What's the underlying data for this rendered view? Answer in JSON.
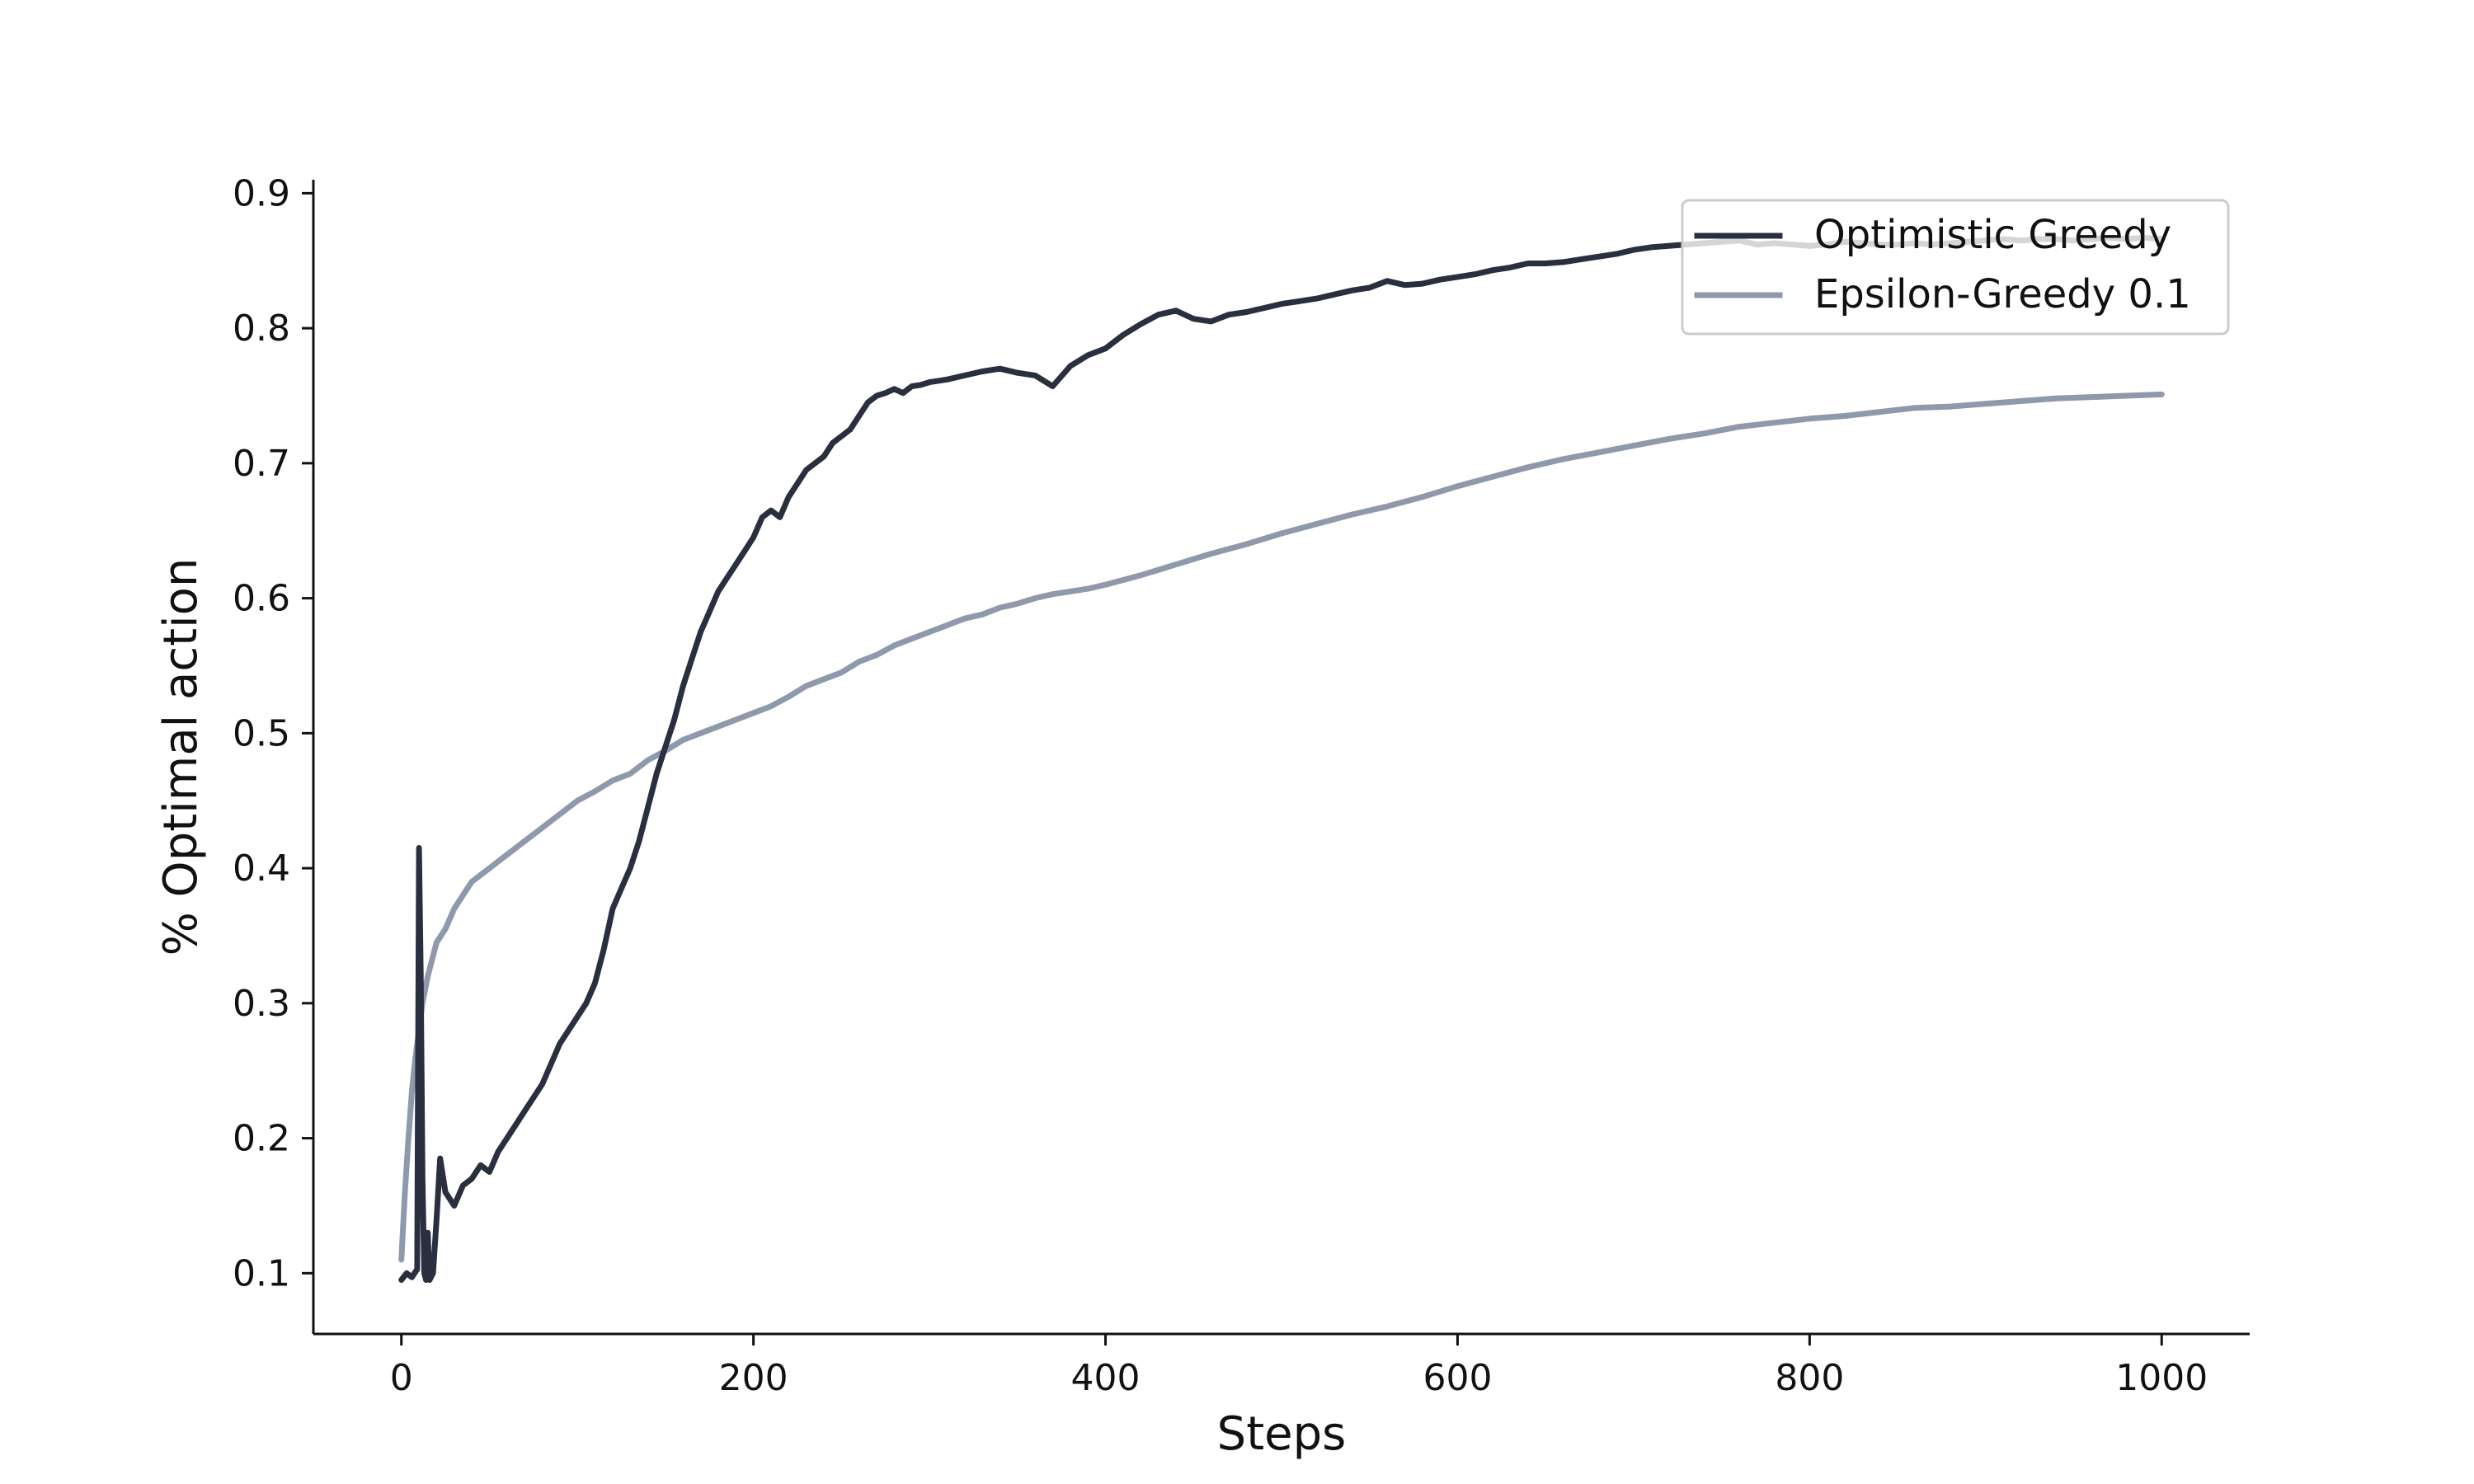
{
  "chart_data": {
    "type": "line",
    "title": "",
    "xlabel": "Steps",
    "ylabel": "% Optimal action",
    "xlim": [
      -50,
      1050
    ],
    "ylim": [
      0.055,
      0.91
    ],
    "xticks": [
      0,
      200,
      400,
      600,
      800,
      1000
    ],
    "xtick_labels": [
      "0",
      "200",
      "400",
      "600",
      "800",
      "1000"
    ],
    "yticks": [
      0.1,
      0.2,
      0.3,
      0.4,
      0.5,
      0.6,
      0.7,
      0.8,
      0.9
    ],
    "ytick_labels": [
      "0.1",
      "0.2",
      "0.3",
      "0.4",
      "0.5",
      "0.6",
      "0.7",
      "0.8",
      "0.9"
    ],
    "grid": false,
    "legend_position": "top-right",
    "series": [
      {
        "name": "Optimistic Greedy",
        "color": "#2a2f3f",
        "x": [
          0,
          3,
          6,
          9,
          10,
          11,
          12,
          13,
          14,
          15,
          16,
          18,
          20,
          22,
          25,
          30,
          35,
          40,
          45,
          50,
          55,
          60,
          65,
          70,
          75,
          80,
          85,
          90,
          95,
          100,
          105,
          110,
          115,
          120,
          125,
          130,
          135,
          140,
          145,
          150,
          155,
          160,
          165,
          170,
          175,
          180,
          185,
          190,
          195,
          200,
          205,
          210,
          215,
          220,
          225,
          230,
          235,
          240,
          245,
          250,
          255,
          260,
          265,
          270,
          275,
          280,
          285,
          290,
          295,
          300,
          310,
          320,
          330,
          340,
          350,
          360,
          370,
          380,
          390,
          400,
          410,
          420,
          430,
          440,
          450,
          460,
          470,
          480,
          490,
          500,
          510,
          520,
          530,
          540,
          550,
          560,
          570,
          580,
          590,
          600,
          610,
          620,
          630,
          640,
          650,
          660,
          670,
          680,
          690,
          700,
          710,
          720,
          730,
          740,
          750,
          760,
          770,
          780,
          790,
          800,
          810,
          820,
          830,
          840,
          850,
          860,
          870,
          880,
          890,
          900,
          910,
          920,
          930,
          940,
          950,
          960,
          970,
          980,
          990,
          1000
        ],
        "values": [
          0.095,
          0.1,
          0.097,
          0.103,
          0.415,
          0.32,
          0.17,
          0.1,
          0.095,
          0.13,
          0.095,
          0.1,
          0.14,
          0.185,
          0.16,
          0.15,
          0.165,
          0.17,
          0.18,
          0.175,
          0.19,
          0.2,
          0.21,
          0.22,
          0.23,
          0.24,
          0.255,
          0.27,
          0.28,
          0.29,
          0.3,
          0.315,
          0.34,
          0.37,
          0.385,
          0.4,
          0.42,
          0.445,
          0.47,
          0.49,
          0.51,
          0.535,
          0.555,
          0.575,
          0.59,
          0.605,
          0.615,
          0.625,
          0.635,
          0.645,
          0.66,
          0.665,
          0.66,
          0.675,
          0.685,
          0.695,
          0.7,
          0.705,
          0.715,
          0.72,
          0.725,
          0.735,
          0.745,
          0.75,
          0.752,
          0.755,
          0.752,
          0.757,
          0.758,
          0.76,
          0.762,
          0.765,
          0.768,
          0.77,
          0.767,
          0.765,
          0.757,
          0.772,
          0.78,
          0.785,
          0.795,
          0.803,
          0.81,
          0.813,
          0.807,
          0.805,
          0.81,
          0.812,
          0.815,
          0.818,
          0.82,
          0.822,
          0.825,
          0.828,
          0.83,
          0.835,
          0.832,
          0.833,
          0.836,
          0.838,
          0.84,
          0.843,
          0.845,
          0.848,
          0.848,
          0.849,
          0.851,
          0.853,
          0.855,
          0.858,
          0.86,
          0.861,
          0.862,
          0.863,
          0.864,
          0.865,
          0.862,
          0.863,
          0.862,
          0.861,
          0.862,
          0.864,
          0.863,
          0.862,
          0.862,
          0.863,
          0.862,
          0.863,
          0.864,
          0.865,
          0.866,
          0.865,
          0.866,
          0.866,
          0.865,
          0.866,
          0.867,
          0.866,
          0.867,
          0.866
        ]
      },
      {
        "name": "Epsilon-Greedy 0.1",
        "color": "#8e99ab",
        "x": [
          0,
          2,
          4,
          6,
          8,
          10,
          12,
          15,
          18,
          20,
          25,
          30,
          35,
          40,
          45,
          50,
          55,
          60,
          70,
          80,
          90,
          100,
          110,
          120,
          130,
          140,
          150,
          160,
          170,
          180,
          190,
          200,
          210,
          220,
          230,
          240,
          250,
          260,
          270,
          280,
          290,
          300,
          310,
          320,
          330,
          340,
          350,
          360,
          370,
          380,
          390,
          400,
          420,
          440,
          460,
          480,
          500,
          520,
          540,
          560,
          580,
          600,
          620,
          640,
          660,
          680,
          700,
          720,
          740,
          760,
          780,
          800,
          820,
          840,
          860,
          880,
          900,
          920,
          940,
          960,
          980,
          1000
        ],
        "values": [
          0.11,
          0.16,
          0.2,
          0.235,
          0.26,
          0.28,
          0.3,
          0.32,
          0.335,
          0.345,
          0.355,
          0.37,
          0.38,
          0.39,
          0.395,
          0.4,
          0.405,
          0.41,
          0.42,
          0.43,
          0.44,
          0.45,
          0.457,
          0.465,
          0.47,
          0.48,
          0.487,
          0.495,
          0.5,
          0.505,
          0.51,
          0.515,
          0.52,
          0.527,
          0.535,
          0.54,
          0.545,
          0.553,
          0.558,
          0.565,
          0.57,
          0.575,
          0.58,
          0.585,
          0.588,
          0.593,
          0.596,
          0.6,
          0.603,
          0.605,
          0.607,
          0.61,
          0.617,
          0.625,
          0.633,
          0.64,
          0.648,
          0.655,
          0.662,
          0.668,
          0.675,
          0.683,
          0.69,
          0.697,
          0.703,
          0.708,
          0.713,
          0.718,
          0.722,
          0.727,
          0.73,
          0.733,
          0.735,
          0.738,
          0.741,
          0.742,
          0.744,
          0.746,
          0.748,
          0.749,
          0.75,
          0.751
        ]
      }
    ]
  }
}
